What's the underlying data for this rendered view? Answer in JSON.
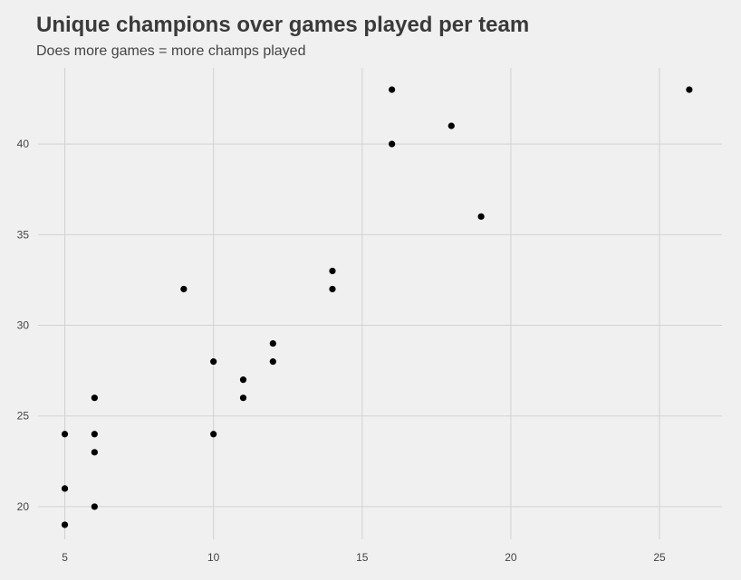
{
  "chart_data": {
    "type": "scatter",
    "title": "Unique champions over games played per team",
    "subtitle": "Does more games = more champs played",
    "xlabel": "",
    "ylabel": "",
    "xlim": [
      4.1,
      27.1
    ],
    "ylim": [
      18.2,
      44.2
    ],
    "x_ticks": [
      5,
      10,
      15,
      20,
      25
    ],
    "y_ticks": [
      20,
      25,
      30,
      35,
      40
    ],
    "grid": true,
    "legend": "none",
    "point_color": "#000000",
    "grid_color": "#d2d2d2",
    "background": "#f0f0f0",
    "points": [
      {
        "x": 5,
        "y": 24
      },
      {
        "x": 5,
        "y": 21
      },
      {
        "x": 5,
        "y": 19
      },
      {
        "x": 6,
        "y": 26
      },
      {
        "x": 6,
        "y": 24
      },
      {
        "x": 6,
        "y": 23
      },
      {
        "x": 6,
        "y": 20
      },
      {
        "x": 9,
        "y": 32
      },
      {
        "x": 10,
        "y": 28
      },
      {
        "x": 10,
        "y": 24
      },
      {
        "x": 11,
        "y": 27
      },
      {
        "x": 11,
        "y": 26
      },
      {
        "x": 12,
        "y": 29
      },
      {
        "x": 12,
        "y": 28
      },
      {
        "x": 14,
        "y": 33
      },
      {
        "x": 14,
        "y": 32
      },
      {
        "x": 16,
        "y": 43
      },
      {
        "x": 16,
        "y": 40
      },
      {
        "x": 18,
        "y": 41
      },
      {
        "x": 19,
        "y": 36
      },
      {
        "x": 26,
        "y": 43
      }
    ]
  }
}
